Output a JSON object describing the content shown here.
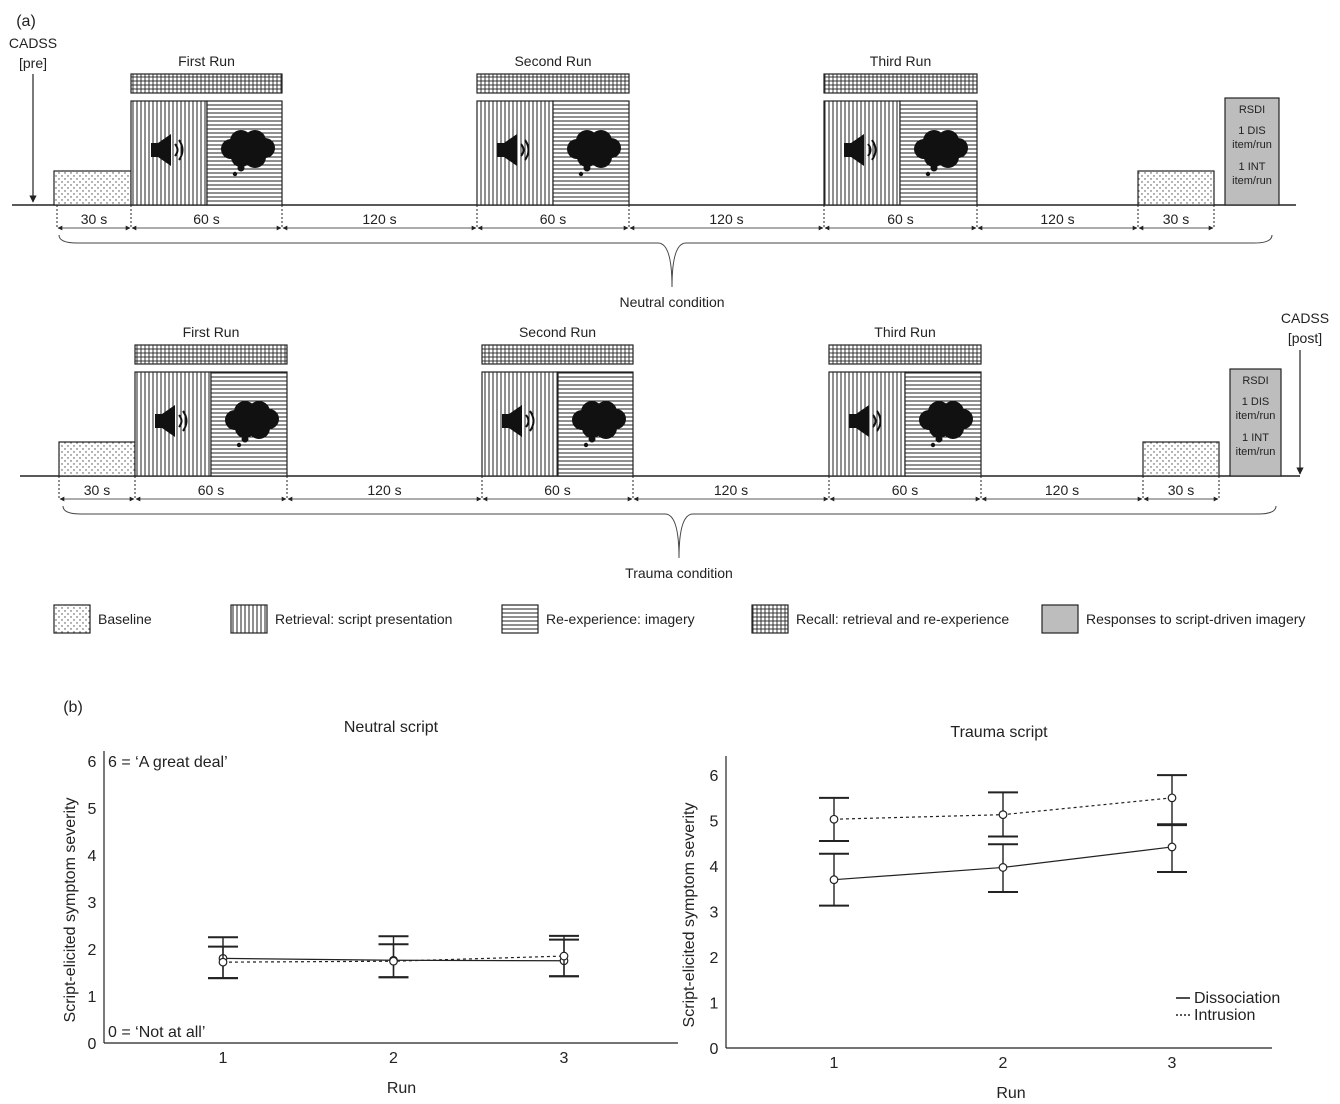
{
  "panel_a": {
    "label": "(a)",
    "cadss_pre": [
      "CADSS",
      "[pre]"
    ],
    "cadss_post": [
      "CADSS",
      "[post]"
    ],
    "neutral": {
      "runs": [
        "First Run",
        "Second Run",
        "Third Run"
      ],
      "durations": [
        "30 s",
        "60 s",
        "120 s",
        "60 s",
        "120 s",
        "60 s",
        "120 s",
        "30 s"
      ],
      "rsdi": [
        "RSDI",
        "1 DIS",
        "item/run",
        "1 INT",
        "item/run"
      ],
      "condition_label": "Neutral condition"
    },
    "trauma": {
      "runs": [
        "First Run",
        "Second Run",
        "Third Run"
      ],
      "durations": [
        "30 s",
        "60 s",
        "120 s",
        "60 s",
        "120 s",
        "60 s",
        "120 s",
        "30 s"
      ],
      "rsdi": [
        "RSDI",
        "1 DIS",
        "item/run",
        "1 INT",
        "item/run"
      ],
      "condition_label": "Trauma condition"
    },
    "legend": [
      {
        "pattern": "dots",
        "label": "Baseline"
      },
      {
        "pattern": "vlines",
        "label": "Retrieval: script presentation"
      },
      {
        "pattern": "hlines",
        "label": "Re-experience: imagery"
      },
      {
        "pattern": "grid",
        "label": "Recall: retrieval and re-experience"
      },
      {
        "pattern": "gray",
        "label": "Responses to script-driven imagery"
      }
    ]
  },
  "panel_b": {
    "label": "(b)"
  },
  "chart_data": [
    {
      "type": "line",
      "title": "Neutral script",
      "xlabel": "Run",
      "ylabel": "Script-elicited symptom severity",
      "x": [
        1,
        2,
        3
      ],
      "ylim": [
        0,
        6
      ],
      "yticks": [
        "0",
        "1",
        "2",
        "3",
        "4",
        "5",
        "6"
      ],
      "xticks": [
        "1",
        "2",
        "3"
      ],
      "annotations": [
        "6 = ‘A great deal’",
        "0 = ‘Not at all’"
      ],
      "series": [
        {
          "style": "solid",
          "values": [
            1.8,
            1.76,
            1.75
          ],
          "err_low": [
            1.38,
            1.4,
            1.42
          ],
          "err_high": [
            2.25,
            2.27,
            2.28
          ]
        },
        {
          "style": "dashed",
          "values": [
            1.72,
            1.74,
            1.85
          ],
          "err_low": [
            1.38,
            1.4,
            1.42
          ],
          "err_high": [
            2.05,
            2.1,
            2.2
          ]
        }
      ]
    },
    {
      "type": "line",
      "title": "Trauma script",
      "xlabel": "Run",
      "ylabel": "Script-elicited symptom severity",
      "x": [
        1,
        2,
        3
      ],
      "ylim": [
        0,
        6.2
      ],
      "yticks": [
        "0",
        "1",
        "2",
        "3",
        "4",
        "5",
        "6"
      ],
      "xticks": [
        "1",
        "2",
        "3"
      ],
      "legend_position": "bottom-right",
      "series": [
        {
          "name": "Dissociation",
          "style": "solid",
          "values": [
            3.7,
            3.97,
            4.42
          ],
          "err_low": [
            3.13,
            3.43,
            3.87
          ],
          "err_high": [
            4.27,
            4.48,
            4.92
          ]
        },
        {
          "name": "Intrusion",
          "style": "dashed",
          "values": [
            5.03,
            5.13,
            5.5
          ],
          "err_low": [
            4.55,
            4.65,
            4.9
          ],
          "err_high": [
            5.5,
            5.62,
            6.0
          ]
        }
      ]
    }
  ]
}
